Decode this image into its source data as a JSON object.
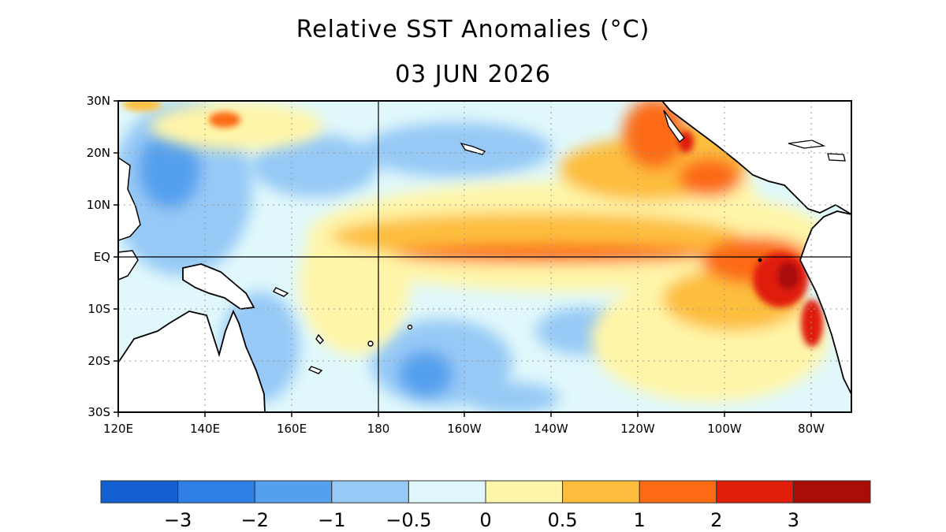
{
  "title": "Relative SST Anomalies (°C)",
  "date": "03 JUN 2026",
  "lat_labels": [
    "30N",
    "20N",
    "10N",
    "EQ",
    "10S",
    "20S",
    "30S"
  ],
  "lon_labels": [
    "120E",
    "140E",
    "160E",
    "180",
    "160W",
    "140W",
    "120W",
    "100W",
    "80W"
  ],
  "colorbar": {
    "colors": [
      "#1560d0",
      "#2e7fe6",
      "#55a0ee",
      "#96c9f6",
      "#e0f8fb",
      "#fff5a8",
      "#fdbe3e",
      "#fc6a13",
      "#e01d0b",
      "#a80d07"
    ],
    "tick_labels": [
      "−3",
      "−2",
      "−1",
      "−0.5",
      "0",
      "0.5",
      "1",
      "2",
      "3"
    ]
  },
  "map_colors": {
    "land": "#ffffff",
    "outline": "#000000"
  }
}
